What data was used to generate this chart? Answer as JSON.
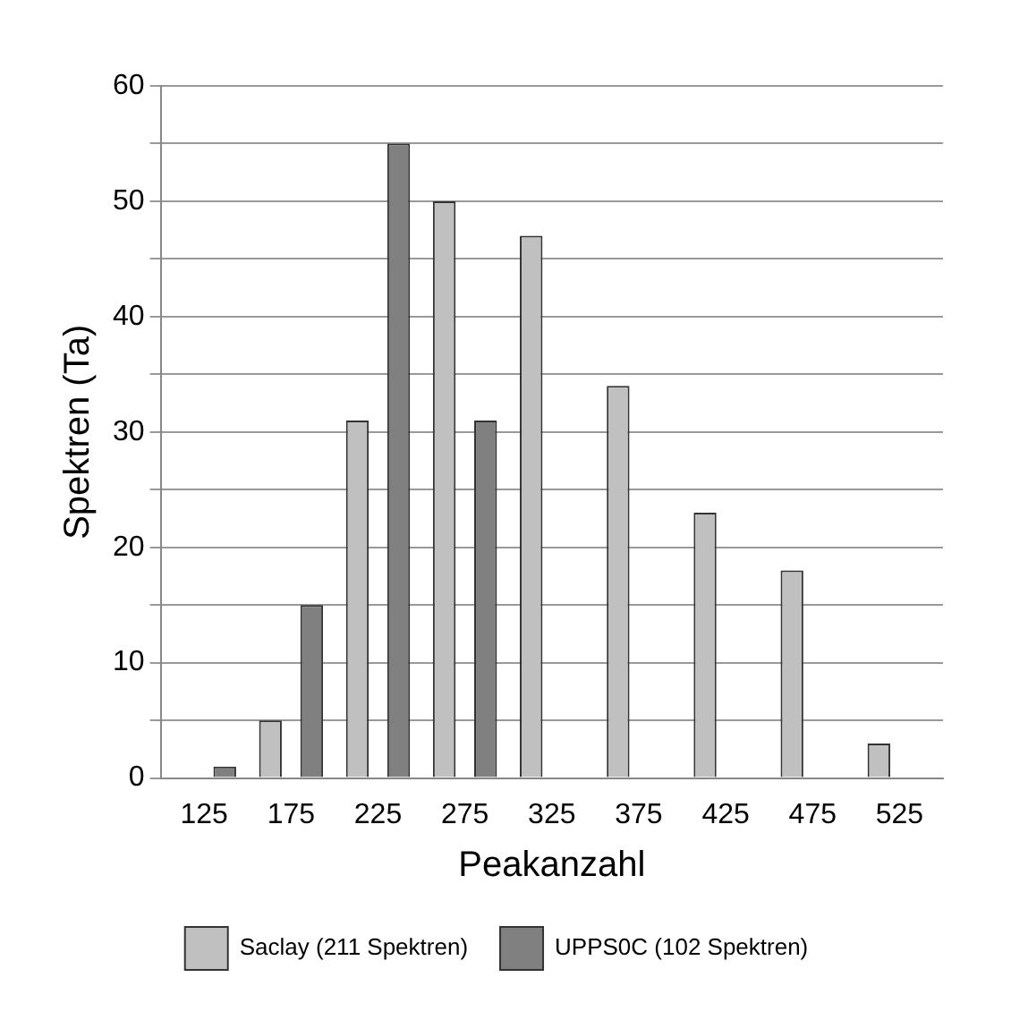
{
  "chart_data": {
    "type": "bar",
    "xlabel": "Peakanzahl",
    "ylabel": "Spektren (Ta)",
    "categories": [
      "125",
      "175",
      "225",
      "275",
      "325",
      "375",
      "425",
      "475",
      "525"
    ],
    "series": [
      {
        "name": "Saclay (211 Spektren)",
        "color": "#c0c0c0",
        "values": [
          0,
          5,
          31,
          50,
          47,
          34,
          23,
          18,
          3
        ]
      },
      {
        "name": "UPPS0C (102 Spektren)",
        "color": "#808080",
        "values": [
          1,
          15,
          55,
          31,
          0,
          0,
          0,
          0,
          0
        ]
      }
    ],
    "ylim": [
      0,
      60
    ],
    "yticks": [
      0,
      {
        "value": 5,
        "label": null
      },
      10,
      {
        "value": 15,
        "label": null
      },
      20,
      {
        "value": 25,
        "label": null
      },
      30,
      {
        "value": 35,
        "label": null
      },
      40,
      {
        "value": 45,
        "label": null
      },
      50,
      {
        "value": 55,
        "label": null
      },
      60
    ],
    "grid": "y",
    "legend": "bottom"
  }
}
